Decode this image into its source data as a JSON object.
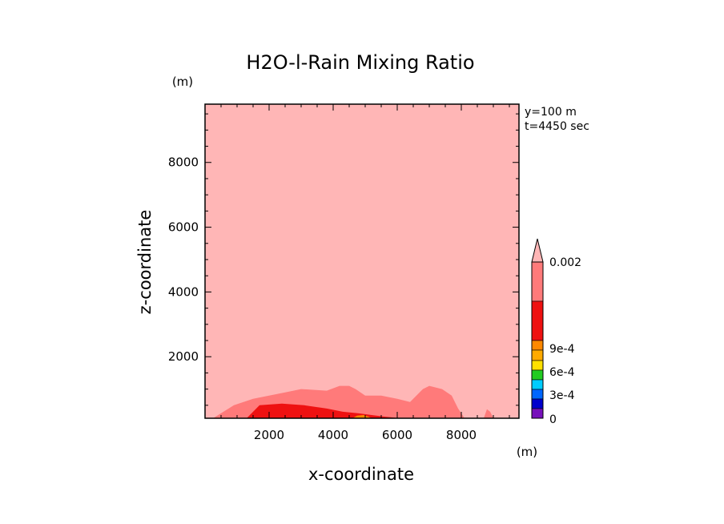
{
  "chart_data": {
    "type": "contour",
    "title": "H2O-l-Rain Mixing Ratio",
    "xlabel": "x-coordinate",
    "ylabel": "z-coordinate",
    "x_unit": "(m)",
    "y_unit": "(m)",
    "xlim": [
      0,
      9800
    ],
    "ylim": [
      100,
      9800
    ],
    "x_ticks": [
      "2000",
      "4000",
      "6000",
      "8000"
    ],
    "y_ticks": [
      "2000",
      "4000",
      "6000",
      "8000"
    ],
    "annotations": [
      "y=100 m",
      "t=4450 sec"
    ],
    "colorbar": {
      "labels": [
        "0.002",
        "9e-4",
        "6e-4",
        "3e-4",
        "0"
      ],
      "colors": [
        "#ffb6b6",
        "#ff7a7a",
        "#ee1111",
        "#ff8800",
        "#ffaa00",
        "#ffe000",
        "#22cc22",
        "#00ccff",
        "#0066ff",
        "#0000cc",
        "#7711bb",
        "#aa00aa"
      ]
    },
    "background_color": "#ffb6b6",
    "contours": [
      {
        "level": "low",
        "color": "#ff7a7a",
        "points": [
          [
            250,
            100
          ],
          [
            900,
            500
          ],
          [
            1500,
            700
          ],
          [
            2500,
            900
          ],
          [
            3000,
            1000
          ],
          [
            3800,
            950
          ],
          [
            4200,
            1100
          ],
          [
            4500,
            1100
          ],
          [
            4700,
            1000
          ],
          [
            5000,
            800
          ],
          [
            5500,
            800
          ],
          [
            6000,
            700
          ],
          [
            6400,
            600
          ],
          [
            6800,
            1000
          ],
          [
            7000,
            1100
          ],
          [
            7400,
            1000
          ],
          [
            7700,
            800
          ],
          [
            7900,
            400
          ],
          [
            8100,
            100
          ]
        ]
      },
      {
        "level": "mid",
        "color": "#ee1111",
        "points": [
          [
            1300,
            100
          ],
          [
            1700,
            500
          ],
          [
            2400,
            550
          ],
          [
            3100,
            500
          ],
          [
            3800,
            400
          ],
          [
            4300,
            300
          ],
          [
            4800,
            250
          ],
          [
            5200,
            200
          ],
          [
            5600,
            150
          ],
          [
            6100,
            100
          ]
        ]
      },
      {
        "level": "high",
        "color": "#ff8800",
        "points": [
          [
            4600,
            100
          ],
          [
            4750,
            180
          ],
          [
            4950,
            200
          ],
          [
            5100,
            150
          ],
          [
            5200,
            100
          ]
        ]
      },
      {
        "level": "low",
        "color": "#ff7a7a",
        "points": [
          [
            8700,
            100
          ],
          [
            8800,
            380
          ],
          [
            8900,
            300
          ],
          [
            9000,
            100
          ]
        ]
      }
    ]
  }
}
